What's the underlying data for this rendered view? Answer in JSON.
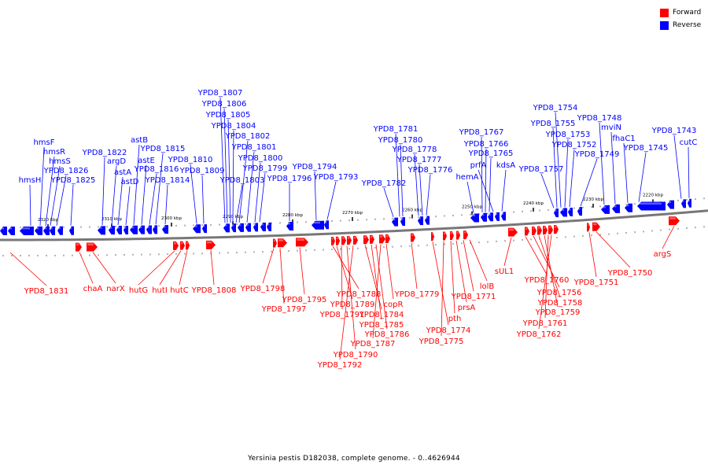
{
  "legend": {
    "forward": {
      "label": "Forward",
      "color": "#ff0000"
    },
    "reverse": {
      "label": "Reverse",
      "color": "#0000ff"
    }
  },
  "caption": "Yersinia pestis D182038, complete genome. - 0..4626944",
  "scale_ticks": [
    "2320 kbp",
    "2310 kbp",
    "2300 kbp",
    "2290 kbp",
    "2280 kbp",
    "2270 kbp",
    "2260 kbp",
    "2250 kbp",
    "2240 kbp",
    "2230 kbp",
    "2220 kbp"
  ],
  "reverse_genes": [
    "hmsH",
    "hmsF",
    "hmsR",
    "hmsS",
    "YPD8_1826",
    "YPD8_1825",
    "YPD8_1822",
    "argD",
    "astA",
    "astD",
    "astB",
    "astE",
    "YPD8_1816",
    "YPD8_1815",
    "YPD8_1814",
    "YPD8_1810",
    "YPD8_1809",
    "YPD8_1807",
    "YPD8_1806",
    "YPD8_1805",
    "YPD8_1804",
    "YPD8_1803",
    "YPD8_1802",
    "YPD8_1801",
    "YPD8_1800",
    "YPD8_1799",
    "YPD8_1796",
    "YPD8_1794",
    "YPD8_1793",
    "YPD8_1782",
    "YPD8_1781",
    "YPD8_1780",
    "YPD8_1778",
    "YPD8_1777",
    "YPD8_1776",
    "YPD8_1767",
    "YPD8_1766",
    "YPD8_1765",
    "hemA",
    "prfA",
    "kdsA",
    "YPD8_1757",
    "YPD8_1755",
    "YPD8_1754",
    "YPD8_1753",
    "YPD8_1752",
    "YPD8_1749",
    "YPD8_1748",
    "mviN",
    "fhaC1",
    "YPD8_1745",
    "YPD8_1743",
    "cutC"
  ],
  "forward_genes": [
    "YPD8_1831",
    "chaA",
    "narX",
    "hutG",
    "hutI",
    "hutC",
    "YPD8_1808",
    "YPD8_1798",
    "YPD8_1797",
    "YPD8_1795",
    "YPD8_1788",
    "YPD8_1789",
    "YPD8_1791",
    "YPD8_1790",
    "YPD8_1792",
    "YPD8_1784",
    "YPD8_1785",
    "YPD8_1786",
    "YPD8_1787",
    "copR",
    "YPD8_1779",
    "YPD8_1774",
    "YPD8_1775",
    "pth",
    "prsA",
    "YPD8_1771",
    "lolB",
    "sUL1",
    "YPD8_1760",
    "YPD8_1756",
    "YPD8_1758",
    "YPD8_1759",
    "YPD8_1761",
    "YPD8_1762",
    "YPD8_1751",
    "YPD8_1750",
    "argS"
  ]
}
